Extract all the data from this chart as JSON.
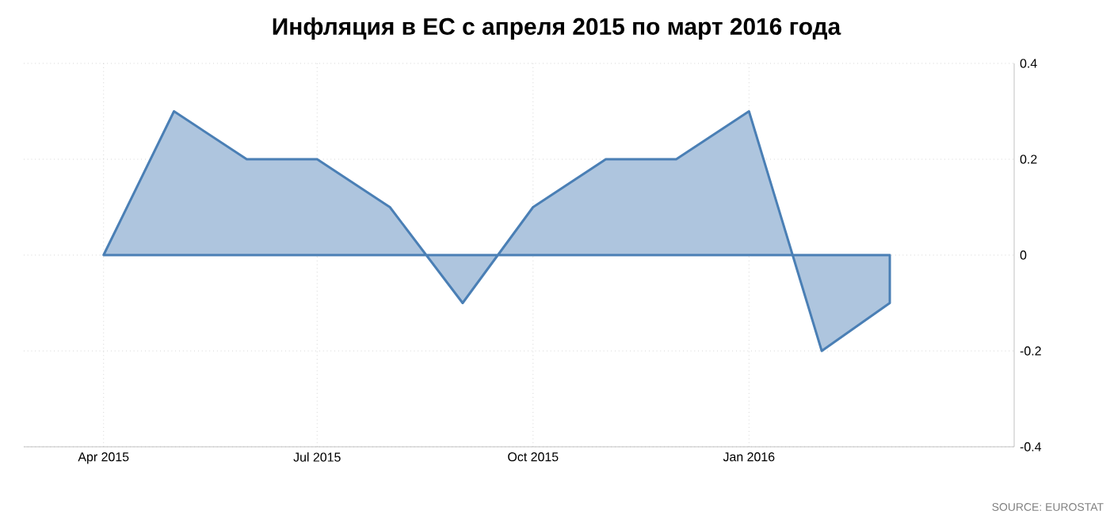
{
  "chart_data": {
    "type": "area",
    "title": "Инфляция в ЕС с апреля 2015 по март 2016 года",
    "x": [
      "2015-04",
      "2015-05",
      "2015-06",
      "2015-07",
      "2015-08",
      "2015-09",
      "2015-10",
      "2015-11",
      "2015-12",
      "2016-01",
      "2016-02",
      "2016-03"
    ],
    "values": [
      0,
      0.3,
      0.2,
      0.2,
      0.1,
      -0.1,
      0.1,
      0.2,
      0.2,
      0.3,
      -0.2,
      -0.1
    ],
    "color": "#4a7fb5",
    "xlim": [
      "2015-02-26",
      "2016-04-23"
    ],
    "xticks": [
      {
        "value": "2015-04",
        "label": "Apr 2015"
      },
      {
        "value": "2015-07",
        "label": "Jul 2015"
      },
      {
        "value": "2015-10",
        "label": "Oct 2015"
      },
      {
        "value": "2016-01",
        "label": "Jan 2016"
      }
    ],
    "ylim": [
      -0.4,
      0.4
    ],
    "yticks": [
      -0.4,
      -0.2,
      0,
      0.2,
      0.4
    ],
    "grid": true,
    "annotations": [
      "SOURCE: EUROSTAT"
    ]
  }
}
